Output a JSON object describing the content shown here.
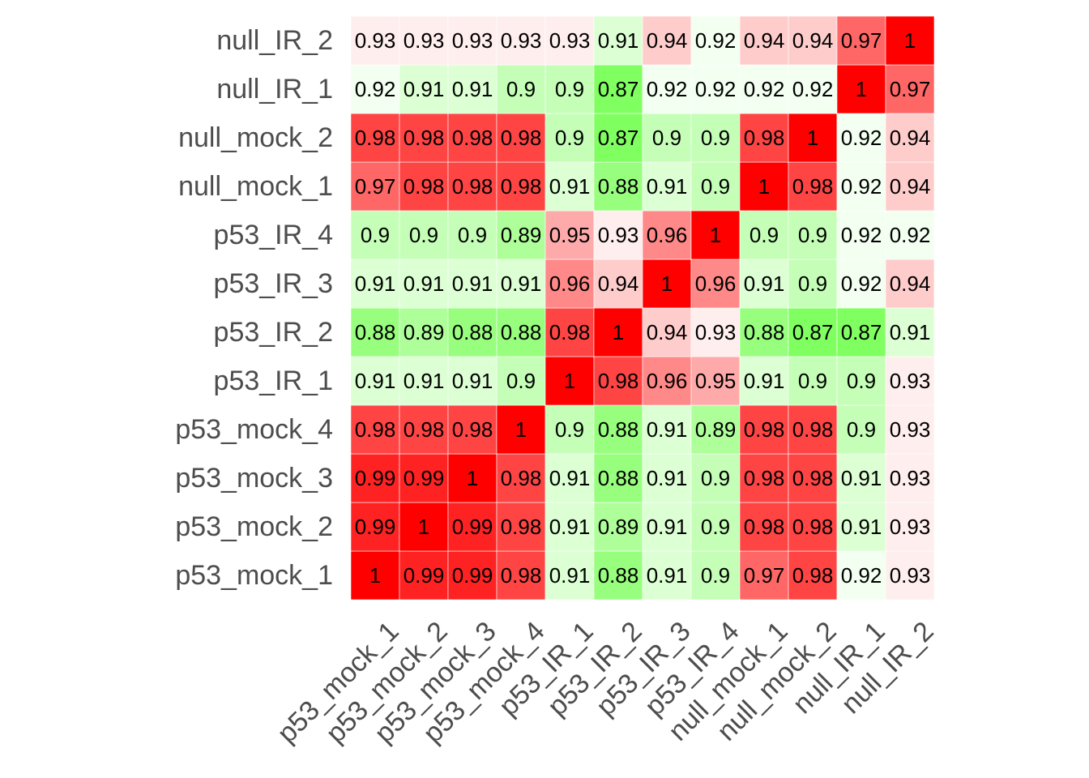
{
  "chart_data": {
    "type": "heatmap",
    "title": "",
    "xlabel": "",
    "ylabel": "",
    "x_categories": [
      "p53_mock_1",
      "p53_mock_2",
      "p53_mock_3",
      "p53_mock_4",
      "p53_IR_1",
      "p53_IR_2",
      "p53_IR_3",
      "p53_IR_4",
      "null_mock_1",
      "null_mock_2",
      "null_IR_1",
      "null_IR_2"
    ],
    "y_categories": [
      "p53_mock_1",
      "p53_mock_2",
      "p53_mock_3",
      "p53_mock_4",
      "p53_IR_1",
      "p53_IR_2",
      "p53_IR_3",
      "p53_IR_4",
      "null_mock_1",
      "null_mock_2",
      "null_IR_1",
      "null_IR_2"
    ],
    "values": [
      [
        1,
        0.99,
        0.99,
        0.98,
        0.91,
        0.88,
        0.91,
        0.9,
        0.97,
        0.98,
        0.92,
        0.93
      ],
      [
        0.99,
        1,
        0.99,
        0.98,
        0.91,
        0.89,
        0.91,
        0.9,
        0.98,
        0.98,
        0.91,
        0.93
      ],
      [
        0.99,
        0.99,
        1,
        0.98,
        0.91,
        0.88,
        0.91,
        0.9,
        0.98,
        0.98,
        0.91,
        0.93
      ],
      [
        0.98,
        0.98,
        0.98,
        1,
        0.9,
        0.88,
        0.91,
        0.89,
        0.98,
        0.98,
        0.9,
        0.93
      ],
      [
        0.91,
        0.91,
        0.91,
        0.9,
        1,
        0.98,
        0.96,
        0.95,
        0.91,
        0.9,
        0.9,
        0.93
      ],
      [
        0.88,
        0.89,
        0.88,
        0.88,
        0.98,
        1,
        0.94,
        0.93,
        0.88,
        0.87,
        0.87,
        0.91
      ],
      [
        0.91,
        0.91,
        0.91,
        0.91,
        0.96,
        0.94,
        1,
        0.96,
        0.91,
        0.9,
        0.92,
        0.94
      ],
      [
        0.9,
        0.9,
        0.9,
        0.89,
        0.95,
        0.93,
        0.96,
        1,
        0.9,
        0.9,
        0.92,
        0.92
      ],
      [
        0.97,
        0.98,
        0.98,
        0.98,
        0.91,
        0.88,
        0.91,
        0.9,
        1,
        0.98,
        0.92,
        0.94
      ],
      [
        0.98,
        0.98,
        0.98,
        0.98,
        0.9,
        0.87,
        0.9,
        0.9,
        0.98,
        1,
        0.92,
        0.94
      ],
      [
        0.92,
        0.91,
        0.91,
        0.9,
        0.9,
        0.87,
        0.92,
        0.92,
        0.92,
        0.92,
        1,
        0.97
      ],
      [
        0.93,
        0.93,
        0.93,
        0.93,
        0.93,
        0.91,
        0.94,
        0.92,
        0.94,
        0.94,
        0.97,
        1
      ]
    ],
    "color_scale": {
      "low": "#80ff60",
      "mid": "#ffffff",
      "high": "#ff0000",
      "midpoint": 0.925,
      "min": 0.87,
      "max": 1
    },
    "cell_labels": "values",
    "grid": false,
    "legend": "none"
  }
}
